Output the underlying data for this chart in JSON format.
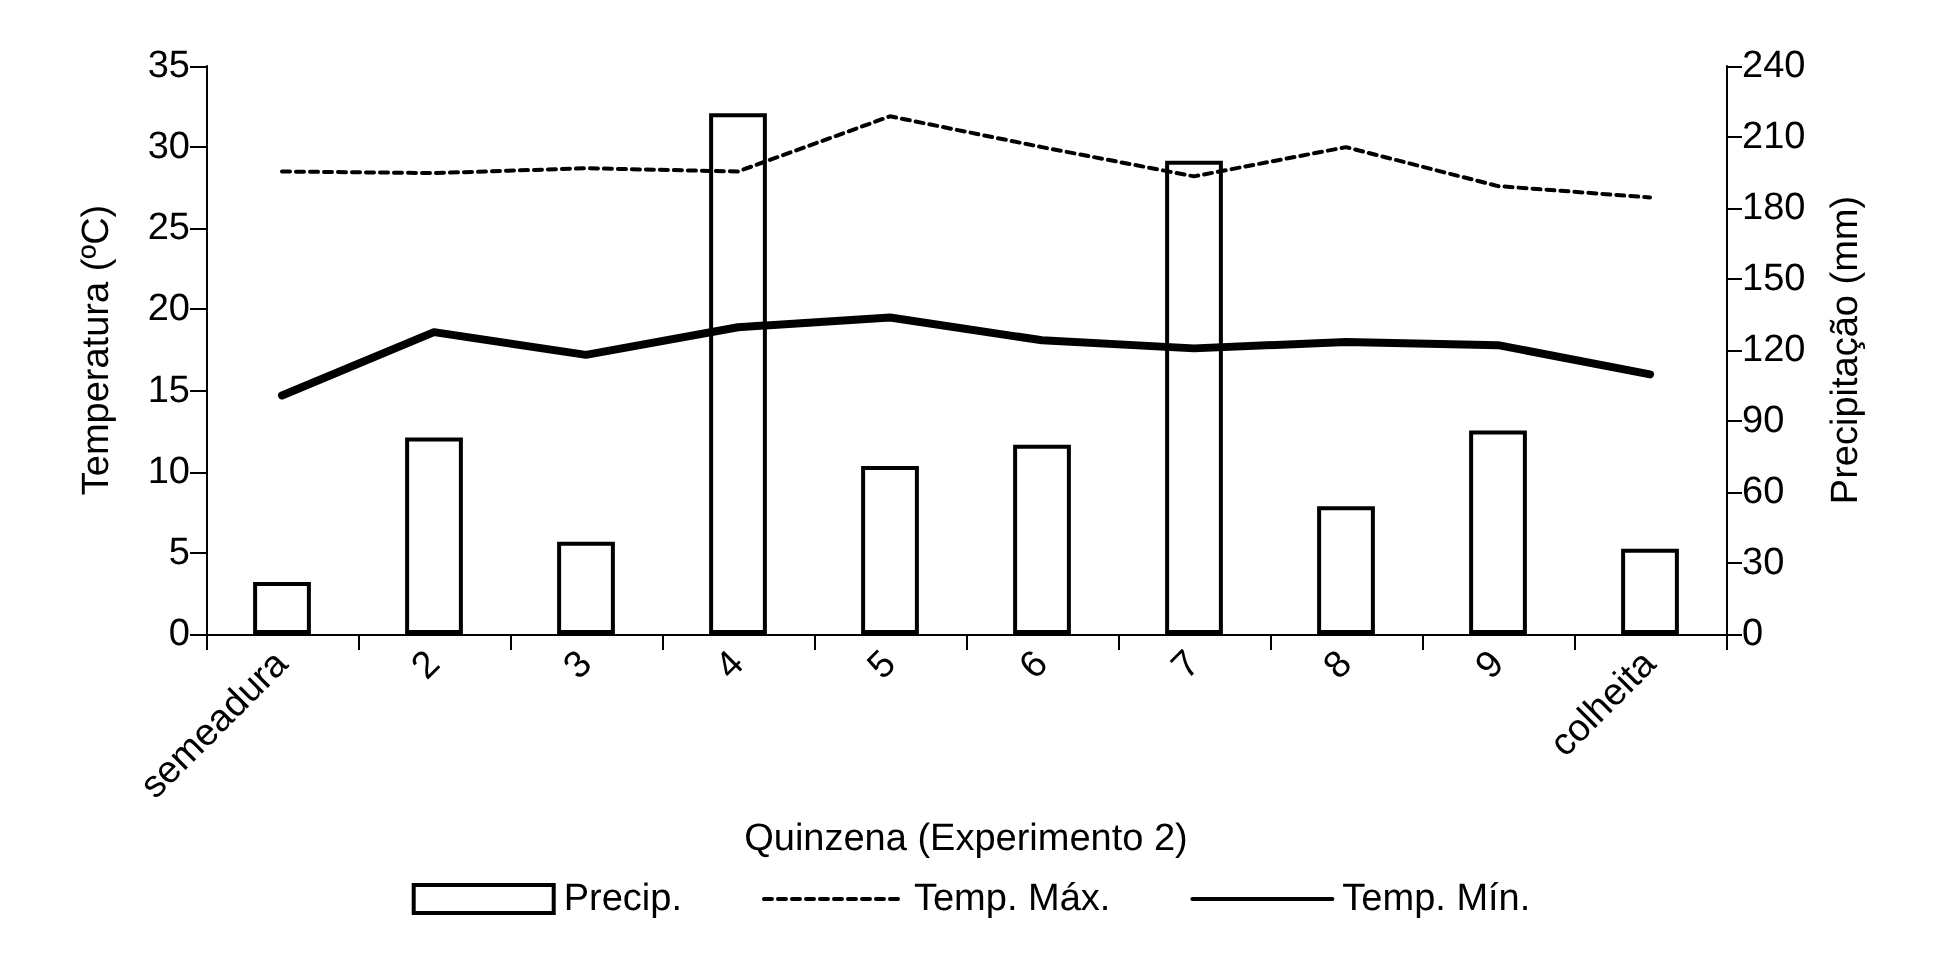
{
  "chart_data": {
    "type": "line",
    "xlabel": "Quinzena (Experimento 2)",
    "ylabel": "Temperatura (ºC)",
    "y2label": "Precipitação (mm)",
    "categories": [
      "semeadura",
      "2",
      "3",
      "4",
      "5",
      "6",
      "7",
      "8",
      "9",
      "colheita"
    ],
    "series": [
      {
        "name": "Precip.",
        "type": "bar",
        "axis": "y2",
        "color": "#ffffff",
        "values": [
          22,
          83,
          39,
          220,
          71,
          80,
          200,
          54,
          86,
          36
        ]
      },
      {
        "name": "Temp. Máx.",
        "color": "#000000",
        "line_style": "dashed",
        "values": [
          28.5,
          28.4,
          28.7,
          28.5,
          31.9,
          30.0,
          28.2,
          30.0,
          27.6,
          26.9
        ]
      },
      {
        "name": "Temp. Mín.",
        "color": "#000000",
        "line_style": "solid",
        "values": [
          14.7,
          18.6,
          17.2,
          18.9,
          19.5,
          18.1,
          17.6,
          18.0,
          17.8,
          16.0
        ]
      }
    ],
    "ylim": [
      0,
      35
    ],
    "yticks": [
      0,
      5,
      10,
      15,
      20,
      25,
      30,
      35
    ],
    "y2lim": [
      0,
      240
    ],
    "y2ticks": [
      0,
      30,
      60,
      90,
      120,
      150,
      180,
      210,
      240
    ],
    "grid": false,
    "legend": "bottom",
    "marker": "none"
  }
}
